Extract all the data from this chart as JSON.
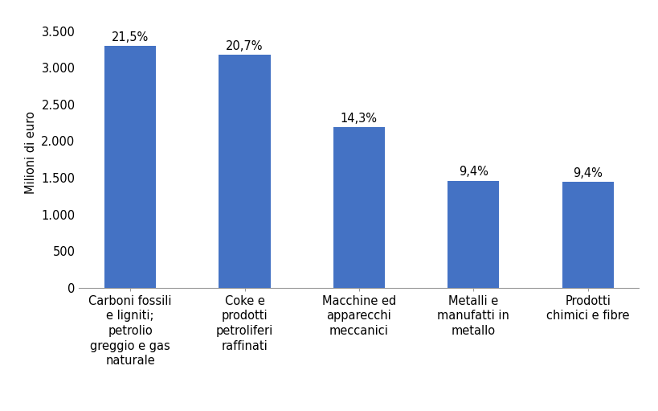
{
  "categories": [
    "Carboni fossili\ne ligniti;\npetrolio\ngreggio e gas\nnaturale",
    "Coke e\nprodotti\npetroliferi\nraffinati",
    "Macchine ed\napparecchi\nmeccanici",
    "Metalli e\nmanufatti in\nmetallo",
    "Prodotti\nchimici e fibre"
  ],
  "values": [
    3300,
    3175,
    2190,
    1460,
    1445
  ],
  "labels": [
    "21,5%",
    "20,7%",
    "14,3%",
    "9,4%",
    "9,4%"
  ],
  "bar_color": "#4472C4",
  "ylabel": "Milioni di euro",
  "ylim": [
    0,
    3700
  ],
  "yticks": [
    0,
    500,
    1000,
    1500,
    2000,
    2500,
    3000,
    3500
  ],
  "ytick_labels": [
    "0",
    "500",
    "1.000",
    "1.500",
    "2.000",
    "2.500",
    "3.000",
    "3.500"
  ],
  "label_fontsize": 10.5,
  "ylabel_fontsize": 10.5,
  "tick_fontsize": 10.5,
  "bar_width": 0.45,
  "background_color": "#ffffff"
}
